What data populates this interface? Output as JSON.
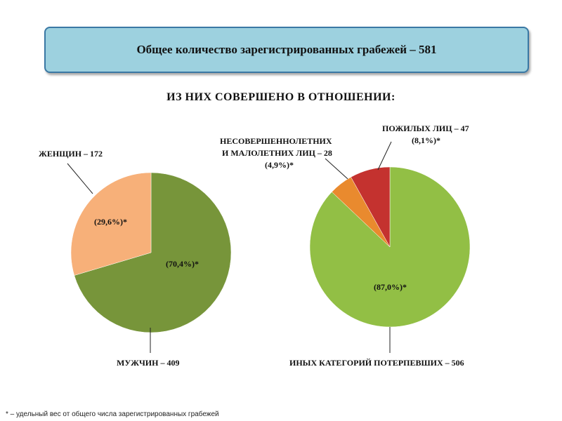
{
  "header": {
    "title": "Общее количество зарегистрированных грабежей – 581"
  },
  "subtitle": "ИЗ НИХ СОВЕРШЕНО В ОТНОШЕНИИ:",
  "footnote": "* – удельный вес от общего числа зарегистрированных грабежей",
  "chart_data": [
    {
      "type": "pie",
      "title": "",
      "slices": [
        {
          "label": "ЖЕНЩИН – 172",
          "value": 172,
          "percent_label": "(29,6%)*",
          "color": "#f7b079"
        },
        {
          "label": "МУЖЧИН – 409",
          "value": 409,
          "percent_label": "(70,4%)*",
          "color": "#77953a"
        }
      ]
    },
    {
      "type": "pie",
      "title": "",
      "slices": [
        {
          "label": "ИНЫХ КАТЕГОРИЙ ПОТЕРПЕВШИХ – 506",
          "value": 506,
          "percent_label": "(87,0%)*",
          "color": "#92bf45"
        },
        {
          "label": "НЕСОВЕРШЕННОЛЕТНИХ И МАЛОЛЕТНИХ ЛИЦ – 28",
          "label_lines": [
            "НЕСОВЕРШЕННОЛЕТНИХ",
            "И МАЛОЛЕТНИХ ЛИЦ – 28"
          ],
          "value": 28,
          "percent_label": "(4,9%)*",
          "color": "#e98a2e"
        },
        {
          "label": "ПОЖИЛЫХ ЛИЦ – 47",
          "value": 47,
          "percent_label": "(8,1%)*",
          "color": "#c4322f"
        }
      ]
    }
  ]
}
